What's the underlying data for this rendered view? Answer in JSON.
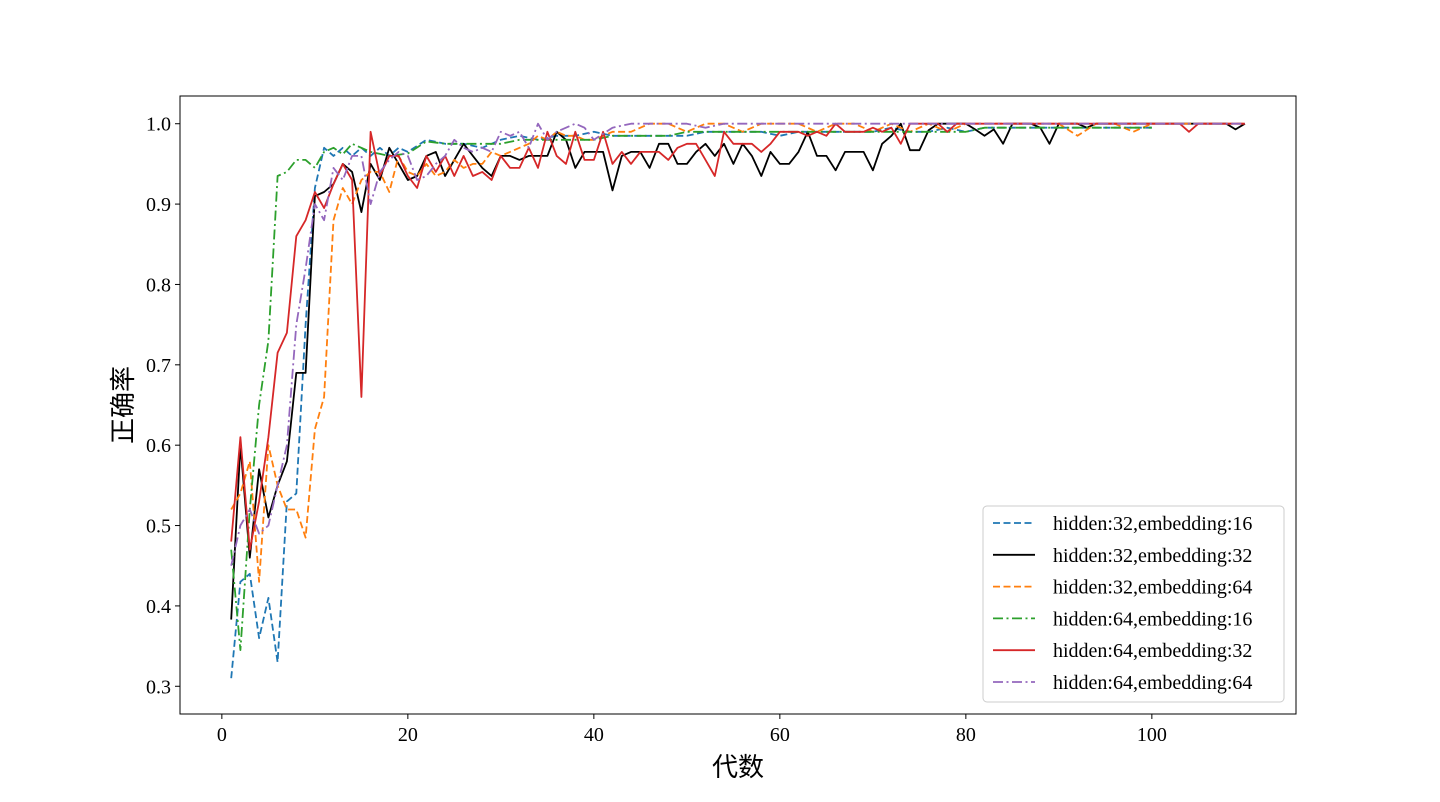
{
  "chart_data": {
    "type": "line",
    "title": "",
    "xlabel": "代数",
    "ylabel": "正确率",
    "xlim": [
      -4.5,
      115.5
    ],
    "ylim": [
      0.2655,
      1.0345
    ],
    "xticks": [
      0,
      20,
      40,
      60,
      80,
      100
    ],
    "yticks": [
      0.3,
      0.4,
      0.5,
      0.6,
      0.7,
      0.8,
      0.9,
      1.0
    ],
    "xtick_labels": [
      "0",
      "20",
      "40",
      "60",
      "80",
      "100"
    ],
    "ytick_labels": [
      "0.3",
      "0.4",
      "0.5",
      "0.6",
      "0.7",
      "0.8",
      "0.9",
      "1.0"
    ],
    "grid": false,
    "legend_position": "lower-right",
    "series": [
      {
        "name": "hidden:32,embedding:16",
        "color": "#1f77b4",
        "style": "dashed",
        "x": [
          1,
          2,
          3,
          4,
          5,
          6,
          7,
          8,
          9,
          10,
          11,
          12,
          13,
          14,
          15,
          16,
          17,
          18,
          19,
          20,
          22,
          24,
          26,
          28,
          30,
          32,
          34,
          36,
          38,
          40,
          42,
          44,
          46,
          48,
          50,
          52,
          54,
          56,
          58,
          60,
          62,
          64,
          66,
          68,
          70,
          72,
          74,
          76,
          78,
          80,
          82,
          84,
          86,
          88,
          90,
          92,
          94,
          96,
          98,
          100
        ],
        "values": [
          0.31,
          0.43,
          0.44,
          0.36,
          0.41,
          0.33,
          0.53,
          0.54,
          0.75,
          0.92,
          0.97,
          0.96,
          0.97,
          0.96,
          0.97,
          0.96,
          0.97,
          0.96,
          0.97,
          0.965,
          0.98,
          0.975,
          0.975,
          0.97,
          0.98,
          0.985,
          0.98,
          0.985,
          0.985,
          0.99,
          0.985,
          0.985,
          0.985,
          0.985,
          0.985,
          0.99,
          0.99,
          0.99,
          0.99,
          0.985,
          0.99,
          0.99,
          0.99,
          0.99,
          0.99,
          0.995,
          0.99,
          0.99,
          0.995,
          0.99,
          0.995,
          0.995,
          0.995,
          0.995,
          0.995,
          0.995,
          0.995,
          0.995,
          0.995,
          0.995
        ]
      },
      {
        "name": "hidden:32,embedding:32",
        "color": "#000000",
        "style": "solid",
        "x": [
          1,
          2,
          3,
          4,
          5,
          6,
          7,
          8,
          9,
          10,
          11,
          12,
          13,
          14,
          15,
          16,
          17,
          18,
          19,
          20,
          21,
          22,
          23,
          24,
          25,
          26,
          27,
          28,
          29,
          30,
          31,
          32,
          33,
          34,
          35,
          36,
          37,
          38,
          39,
          40,
          41,
          42,
          43,
          44,
          45,
          46,
          47,
          48,
          49,
          50,
          51,
          52,
          53,
          54,
          55,
          56,
          57,
          58,
          59,
          60,
          61,
          62,
          63,
          64,
          65,
          66,
          67,
          68,
          69,
          70,
          71,
          72,
          73,
          74,
          75,
          76,
          77,
          78,
          79,
          80,
          81,
          82,
          83,
          84,
          85,
          86,
          87,
          88,
          89,
          90,
          91,
          92,
          93,
          94,
          95,
          96,
          97,
          98,
          99,
          100,
          101,
          102,
          103,
          104,
          105,
          106,
          107,
          108,
          109,
          110
        ],
        "values": [
          0.383,
          0.6,
          0.46,
          0.57,
          0.51,
          0.55,
          0.58,
          0.69,
          0.69,
          0.91,
          0.915,
          0.925,
          0.95,
          0.94,
          0.89,
          0.95,
          0.93,
          0.97,
          0.95,
          0.93,
          0.935,
          0.96,
          0.965,
          0.935,
          0.955,
          0.975,
          0.96,
          0.945,
          0.935,
          0.96,
          0.96,
          0.955,
          0.96,
          0.96,
          0.96,
          0.99,
          0.98,
          0.945,
          0.965,
          0.965,
          0.965,
          0.917,
          0.96,
          0.965,
          0.965,
          0.945,
          0.975,
          0.975,
          0.95,
          0.95,
          0.965,
          0.975,
          0.96,
          0.975,
          0.95,
          0.975,
          0.96,
          0.935,
          0.965,
          0.95,
          0.95,
          0.965,
          0.99,
          0.96,
          0.96,
          0.942,
          0.965,
          0.965,
          0.965,
          0.942,
          0.975,
          0.985,
          1.0,
          0.967,
          0.967,
          0.992,
          1.0,
          1.0,
          1.0,
          1.0,
          0.993,
          0.985,
          0.993,
          0.975,
          1.0,
          1.0,
          1.0,
          0.995,
          0.975,
          1.0,
          1.0,
          1.0,
          0.995,
          1.0,
          1.0,
          1.0,
          1.0,
          1.0,
          1.0,
          1.0,
          1.0,
          1.0,
          1.0,
          1.0,
          1.0,
          1.0,
          1.0,
          1.0,
          0.993,
          1.0
        ]
      },
      {
        "name": "hidden:32,embedding:64",
        "color": "#ff7f0e",
        "style": "dashed",
        "x": [
          1,
          2,
          3,
          4,
          5,
          6,
          7,
          8,
          9,
          10,
          11,
          12,
          13,
          14,
          15,
          16,
          17,
          18,
          19,
          20,
          21,
          22,
          23,
          24,
          25,
          26,
          27,
          28,
          29,
          30,
          31,
          32,
          33,
          34,
          35,
          36,
          37,
          38,
          39,
          40,
          42,
          44,
          46,
          48,
          50,
          52,
          54,
          56,
          58,
          60,
          62,
          64,
          66,
          68,
          70,
          72,
          74,
          76,
          78,
          80,
          82,
          84,
          86,
          88,
          90,
          92,
          94,
          96,
          98,
          100,
          102,
          104,
          106,
          108,
          110
        ],
        "values": [
          0.52,
          0.54,
          0.58,
          0.43,
          0.6,
          0.55,
          0.52,
          0.52,
          0.485,
          0.62,
          0.66,
          0.88,
          0.92,
          0.9,
          0.93,
          0.94,
          0.94,
          0.915,
          0.96,
          0.94,
          0.935,
          0.95,
          0.935,
          0.94,
          0.955,
          0.945,
          0.95,
          0.95,
          0.965,
          0.96,
          0.965,
          0.97,
          0.975,
          0.985,
          0.98,
          0.99,
          0.985,
          0.985,
          0.98,
          0.98,
          0.99,
          0.99,
          1.0,
          1.0,
          0.99,
          1.0,
          1.0,
          0.99,
          1.0,
          1.0,
          1.0,
          0.99,
          1.0,
          1.0,
          0.99,
          1.0,
          0.99,
          1.0,
          0.99,
          1.0,
          1.0,
          1.0,
          1.0,
          1.0,
          1.0,
          0.985,
          1.0,
          1.0,
          0.99,
          1.0,
          1.0,
          1.0,
          1.0,
          1.0,
          1.0
        ]
      },
      {
        "name": "hidden:64,embedding:16",
        "color": "#2ca02c",
        "style": "dashdot",
        "x": [
          1,
          2,
          3,
          4,
          5,
          6,
          7,
          8,
          9,
          10,
          11,
          12,
          13,
          14,
          16,
          18,
          20,
          22,
          24,
          26,
          28,
          30,
          32,
          34,
          36,
          38,
          40,
          42,
          44,
          46,
          48,
          50,
          52,
          54,
          56,
          58,
          60,
          62,
          64,
          66,
          68,
          70,
          72,
          74,
          76,
          78,
          80,
          82,
          84,
          86,
          88,
          90,
          92,
          94,
          96,
          98,
          100
        ],
        "values": [
          0.47,
          0.345,
          0.52,
          0.65,
          0.73,
          0.935,
          0.94,
          0.955,
          0.955,
          0.945,
          0.965,
          0.97,
          0.962,
          0.975,
          0.965,
          0.96,
          0.963,
          0.978,
          0.975,
          0.975,
          0.975,
          0.975,
          0.98,
          0.98,
          0.98,
          0.98,
          0.98,
          0.985,
          0.985,
          0.985,
          0.985,
          0.99,
          0.99,
          0.99,
          0.99,
          0.99,
          0.99,
          0.99,
          0.99,
          0.99,
          0.99,
          0.99,
          0.99,
          0.99,
          0.99,
          0.99,
          0.99,
          0.995,
          0.995,
          0.995,
          0.995,
          0.995,
          0.995,
          0.995,
          0.995,
          0.995,
          0.995
        ]
      },
      {
        "name": "hidden:64,embedding:32",
        "color": "#d62728",
        "style": "solid",
        "x": [
          1,
          2,
          3,
          4,
          5,
          6,
          7,
          8,
          9,
          10,
          11,
          12,
          13,
          14,
          15,
          16,
          17,
          18,
          19,
          20,
          21,
          22,
          23,
          24,
          25,
          26,
          27,
          28,
          29,
          30,
          31,
          32,
          33,
          34,
          35,
          36,
          37,
          38,
          39,
          40,
          41,
          42,
          43,
          44,
          45,
          46,
          47,
          48,
          49,
          50,
          51,
          52,
          53,
          54,
          55,
          56,
          57,
          58,
          59,
          60,
          61,
          62,
          63,
          64,
          65,
          66,
          67,
          68,
          69,
          70,
          71,
          72,
          73,
          74,
          75,
          76,
          77,
          78,
          79,
          80,
          81,
          82,
          83,
          84,
          85,
          86,
          87,
          88,
          89,
          90,
          91,
          92,
          93,
          94,
          95,
          96,
          97,
          98,
          99,
          100,
          101,
          102,
          103,
          104,
          105,
          106,
          107,
          108,
          109,
          110
        ],
        "values": [
          0.48,
          0.61,
          0.47,
          0.53,
          0.61,
          0.715,
          0.74,
          0.86,
          0.88,
          0.915,
          0.895,
          0.925,
          0.95,
          0.93,
          0.66,
          0.99,
          0.935,
          0.96,
          0.96,
          0.935,
          0.92,
          0.96,
          0.94,
          0.96,
          0.935,
          0.96,
          0.935,
          0.94,
          0.93,
          0.96,
          0.945,
          0.945,
          0.97,
          0.945,
          0.99,
          0.96,
          0.95,
          0.99,
          0.955,
          0.955,
          0.99,
          0.95,
          0.965,
          0.95,
          0.965,
          0.965,
          0.965,
          0.955,
          0.97,
          0.975,
          0.975,
          0.955,
          0.935,
          0.99,
          0.975,
          0.975,
          0.975,
          0.965,
          0.975,
          0.99,
          0.99,
          0.99,
          0.985,
          0.99,
          0.985,
          1.0,
          0.99,
          0.99,
          0.99,
          0.995,
          0.99,
          0.995,
          0.975,
          1.0,
          1.0,
          1.0,
          1.0,
          0.99,
          1.0,
          1.0,
          1.0,
          1.0,
          1.0,
          1.0,
          1.0,
          1.0,
          1.0,
          1.0,
          1.0,
          1.0,
          1.0,
          1.0,
          1.0,
          1.0,
          1.0,
          1.0,
          1.0,
          1.0,
          1.0,
          1.0,
          1.0,
          1.0,
          1.0,
          0.99,
          1.0,
          1.0,
          1.0,
          1.0,
          1.0,
          1.0
        ]
      },
      {
        "name": "hidden:64,embedding:64",
        "color": "#9467bd",
        "style": "dashdot",
        "x": [
          1,
          2,
          3,
          4,
          5,
          6,
          7,
          8,
          9,
          10,
          11,
          12,
          13,
          14,
          15,
          16,
          17,
          18,
          19,
          20,
          21,
          22,
          23,
          24,
          25,
          26,
          27,
          28,
          29,
          30,
          31,
          32,
          33,
          34,
          35,
          36,
          37,
          38,
          39,
          40,
          42,
          44,
          46,
          48,
          50,
          52,
          54,
          56,
          58,
          60,
          62,
          64,
          66,
          68,
          70,
          72,
          74,
          76,
          78,
          80,
          82,
          84,
          86,
          88,
          90,
          92,
          94,
          96,
          98,
          100,
          102,
          104,
          106,
          108,
          110
        ],
        "values": [
          0.45,
          0.5,
          0.52,
          0.49,
          0.5,
          0.55,
          0.6,
          0.75,
          0.82,
          0.9,
          0.88,
          0.945,
          0.93,
          0.96,
          0.96,
          0.9,
          0.94,
          0.955,
          0.965,
          0.96,
          0.93,
          0.935,
          0.95,
          0.96,
          0.98,
          0.97,
          0.965,
          0.97,
          0.965,
          0.99,
          0.985,
          0.99,
          0.97,
          1.0,
          0.98,
          0.99,
          0.995,
          1.0,
          0.995,
          0.98,
          0.995,
          1.0,
          1.0,
          1.0,
          1.0,
          0.995,
          1.0,
          1.0,
          1.0,
          1.0,
          1.0,
          1.0,
          1.0,
          1.0,
          1.0,
          1.0,
          1.0,
          1.0,
          1.0,
          1.0,
          1.0,
          1.0,
          1.0,
          1.0,
          1.0,
          1.0,
          1.0,
          1.0,
          1.0,
          1.0,
          1.0,
          1.0,
          1.0,
          1.0,
          1.0
        ]
      }
    ]
  }
}
